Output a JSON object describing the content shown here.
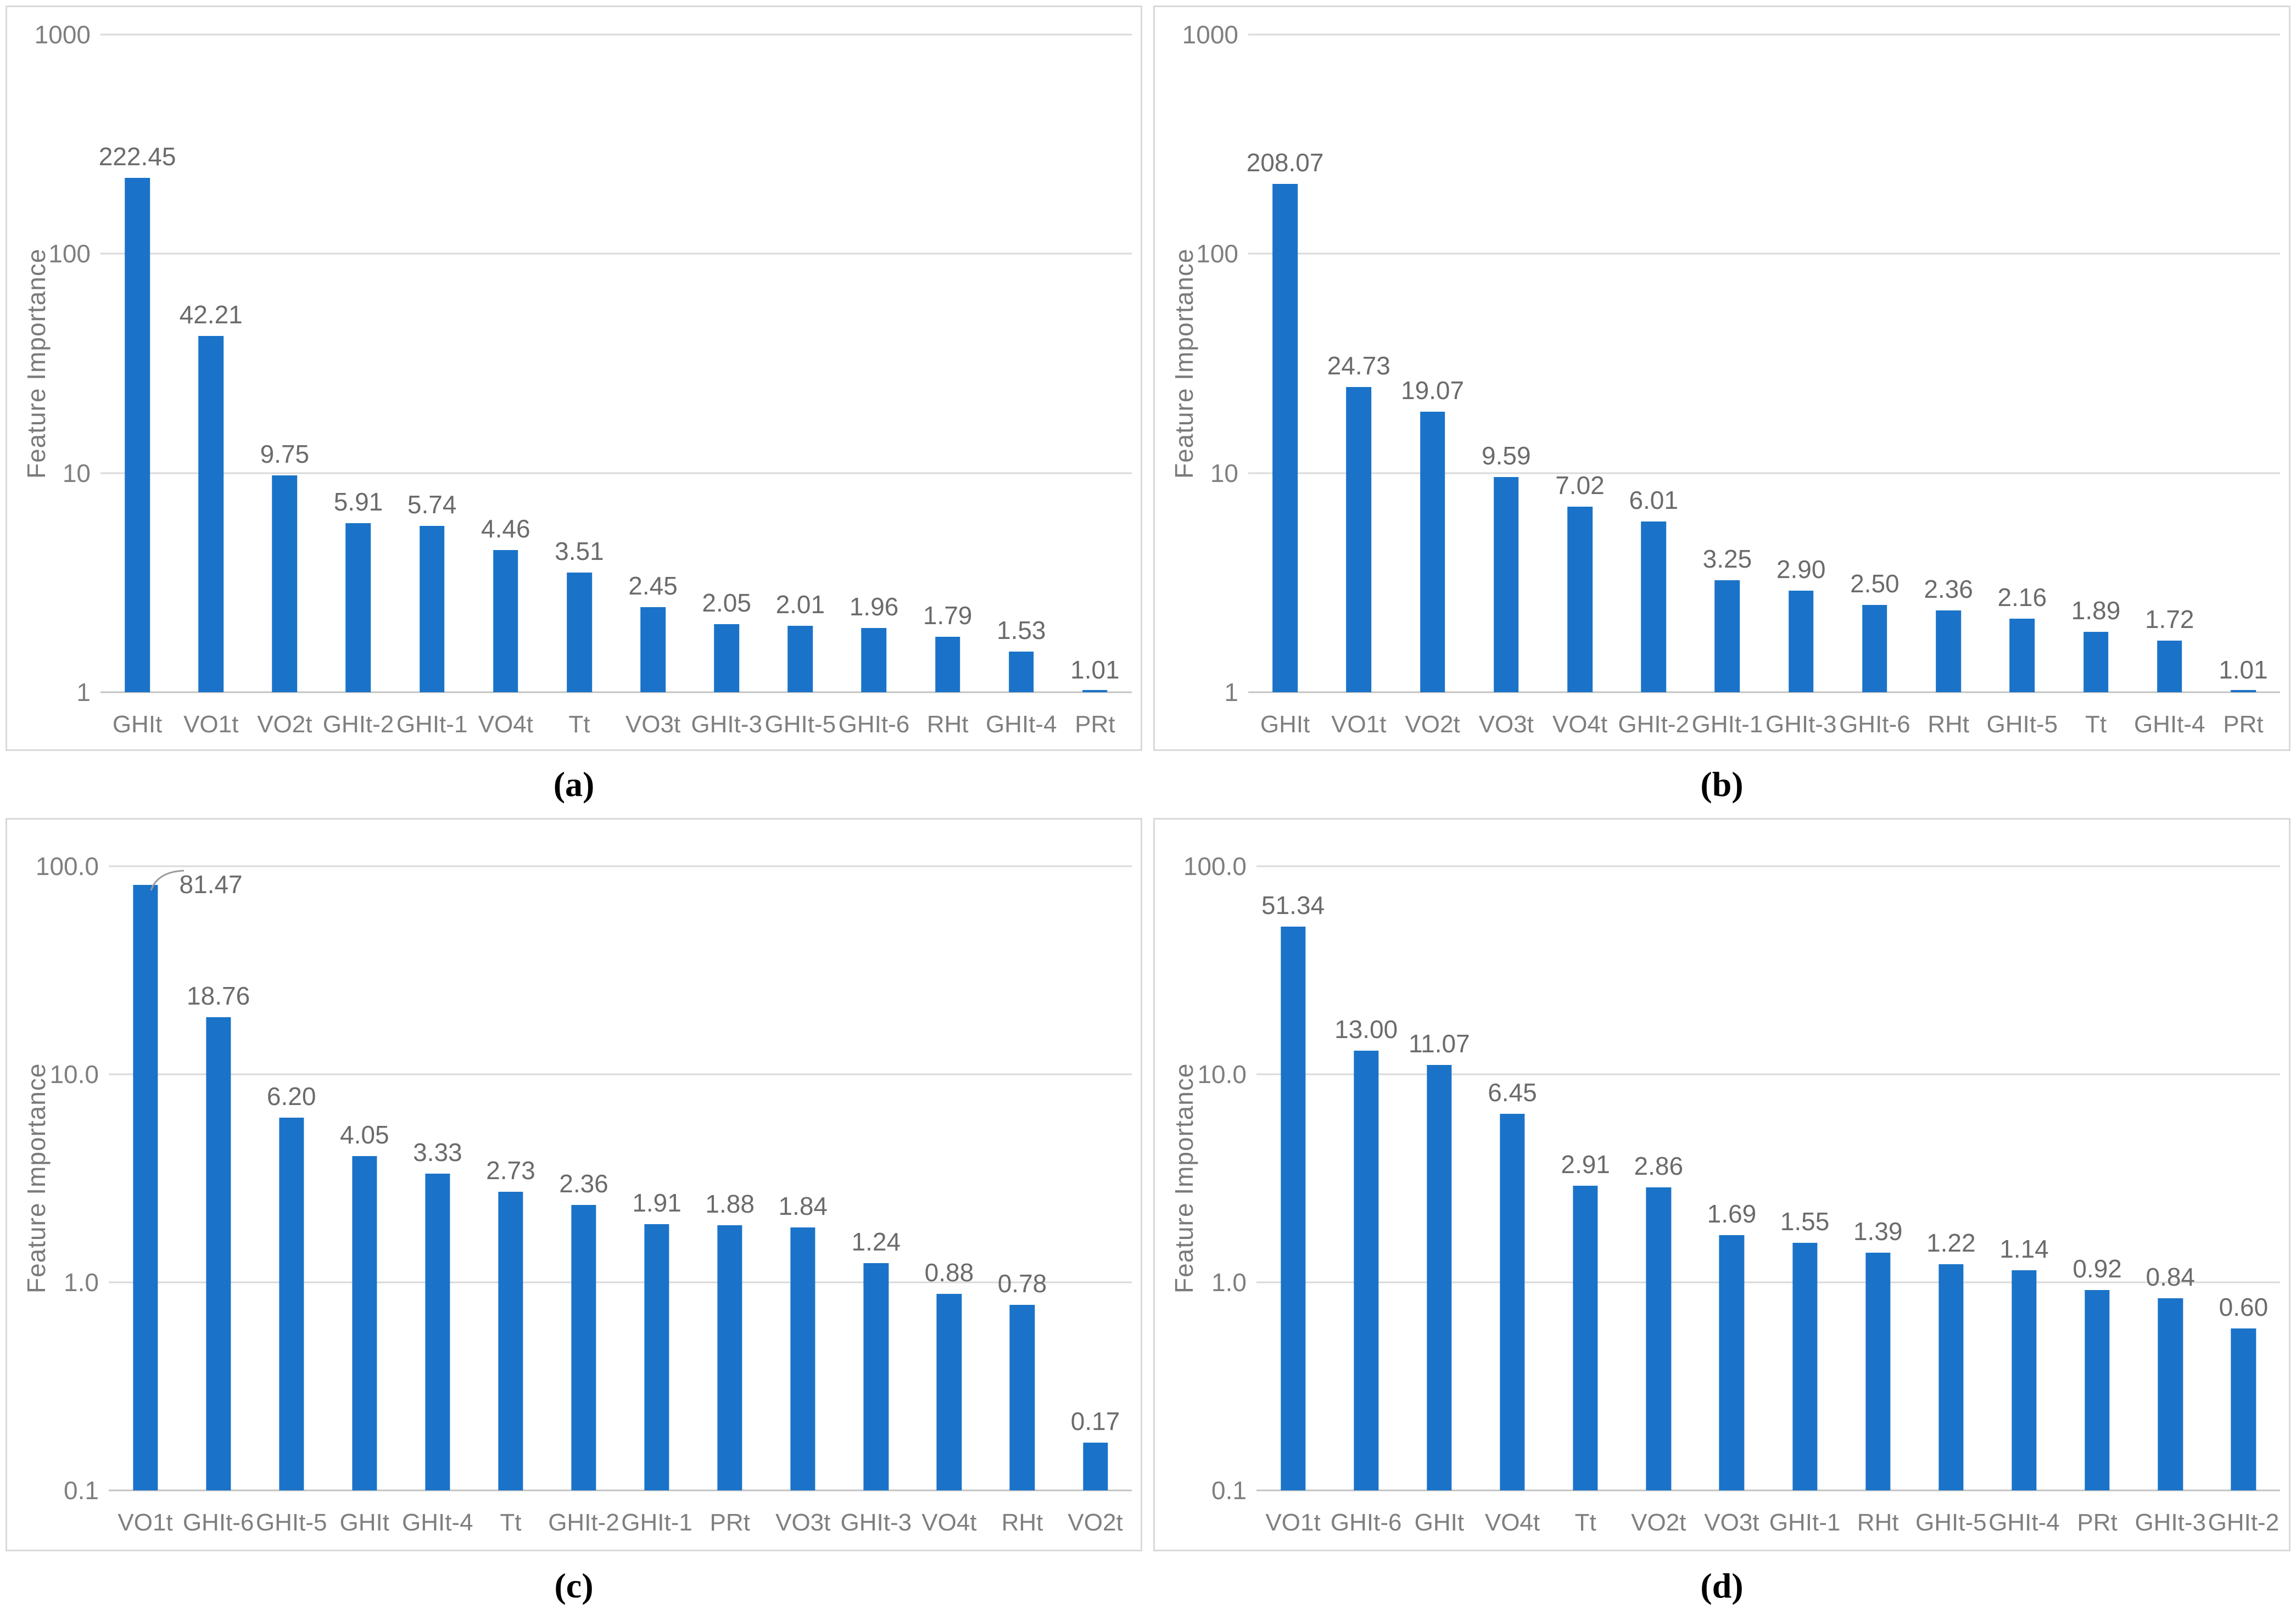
{
  "figure_title": "Feature importance bar charts, four panels",
  "colors": {
    "bar": "#1A73C8",
    "gridline": "#DADADA",
    "baseline": "#C3C3C3",
    "tick_label": "#7F7F7F",
    "data_label": "#6B6B6B",
    "axis_title": "#7A7A7A",
    "caption": "#000000",
    "panel_border": "#D9D9D9",
    "background": "#FFFFFF"
  },
  "chart_data": [
    {
      "type": "bar",
      "panel": "a",
      "caption": "(a)",
      "title": "",
      "xlabel": "",
      "ylabel": "Feature Importance",
      "yscale": "log",
      "ylim": [
        1,
        1000
      ],
      "y_tick_labels": [
        "1000",
        "100",
        "10",
        "1"
      ],
      "grid": true,
      "legend": false,
      "categories": [
        "GHIt",
        "VO1t",
        "VO2t",
        "GHIt-2",
        "GHIt-1",
        "VO4t",
        "Tt",
        "VO3t",
        "GHIt-3",
        "GHIt-5",
        "GHIt-6",
        "RHt",
        "GHIt-4",
        "PRt"
      ],
      "values": [
        222.45,
        42.21,
        9.75,
        5.91,
        5.74,
        4.46,
        3.51,
        2.45,
        2.05,
        2.01,
        1.96,
        1.79,
        1.53,
        1.01
      ],
      "labels": [
        "222.45",
        "42.21",
        "9.75",
        "5.91",
        "5.74",
        "4.46",
        "3.51",
        "2.45",
        "2.05",
        "2.01",
        "1.96",
        "1.79",
        "1.53",
        "1.01"
      ]
    },
    {
      "type": "bar",
      "panel": "b",
      "caption": "(b)",
      "title": "",
      "xlabel": "",
      "ylabel": "Feature Importance",
      "yscale": "log",
      "ylim": [
        1,
        1000
      ],
      "y_tick_labels": [
        "1000",
        "100",
        "10",
        "1"
      ],
      "grid": true,
      "legend": false,
      "categories": [
        "GHIt",
        "VO1t",
        "VO2t",
        "VO3t",
        "VO4t",
        "GHIt-2",
        "GHIt-1",
        "GHIt-3",
        "GHIt-6",
        "RHt",
        "GHIt-5",
        "Tt",
        "GHIt-4",
        "PRt"
      ],
      "values": [
        208.07,
        24.73,
        19.07,
        9.59,
        7.02,
        6.01,
        3.25,
        2.9,
        2.5,
        2.36,
        2.16,
        1.89,
        1.72,
        1.01
      ],
      "labels": [
        "208.07",
        "24.73",
        "19.07",
        "9.59",
        "7.02",
        "6.01",
        "3.25",
        "2.90",
        "2.50",
        "2.36",
        "2.16",
        "1.89",
        "1.72",
        "1.01"
      ]
    },
    {
      "type": "bar",
      "panel": "c",
      "caption": "(c)",
      "title": "",
      "xlabel": "",
      "ylabel": "Feature Importance",
      "yscale": "log",
      "ylim": [
        0.1,
        100
      ],
      "y_tick_labels": [
        "100.0",
        "10.0",
        "1.0",
        "0.1"
      ],
      "grid": true,
      "legend": false,
      "categories": [
        "VO1t",
        "GHIt-6",
        "GHIt-5",
        "GHIt",
        "GHIt-4",
        "Tt",
        "GHIt-2",
        "GHIt-1",
        "PRt",
        "VO3t",
        "GHIt-3",
        "VO4t",
        "RHt",
        "VO2t"
      ],
      "values": [
        81.47,
        18.76,
        6.2,
        4.05,
        3.33,
        2.73,
        2.36,
        1.91,
        1.88,
        1.84,
        1.24,
        0.88,
        0.78,
        0.17
      ],
      "labels": [
        "81.47",
        "18.76",
        "6.20",
        "4.05",
        "3.33",
        "2.73",
        "2.36",
        "1.91",
        "1.88",
        "1.84",
        "1.24",
        "0.88",
        "0.78",
        "0.17"
      ]
    },
    {
      "type": "bar",
      "panel": "d",
      "caption": "(d)",
      "title": "",
      "xlabel": "",
      "ylabel": "Feature Importance",
      "yscale": "log",
      "ylim": [
        0.1,
        100
      ],
      "y_tick_labels": [
        "100.0",
        "10.0",
        "1.0",
        "0.1"
      ],
      "grid": true,
      "legend": false,
      "categories": [
        "VO1t",
        "GHIt-6",
        "GHIt",
        "VO4t",
        "Tt",
        "VO2t",
        "VO3t",
        "GHIt-1",
        "RHt",
        "GHIt-5",
        "GHIt-4",
        "PRt",
        "GHIt-3",
        "GHIt-2"
      ],
      "values": [
        51.34,
        13.0,
        11.07,
        6.45,
        2.91,
        2.86,
        1.69,
        1.55,
        1.39,
        1.22,
        1.14,
        0.92,
        0.84,
        0.6
      ],
      "labels": [
        "51.34",
        "13.00",
        "11.07",
        "6.45",
        "2.91",
        "2.86",
        "1.69",
        "1.55",
        "1.39",
        "1.22",
        "1.14",
        "0.92",
        "0.84",
        "0.60"
      ]
    }
  ]
}
